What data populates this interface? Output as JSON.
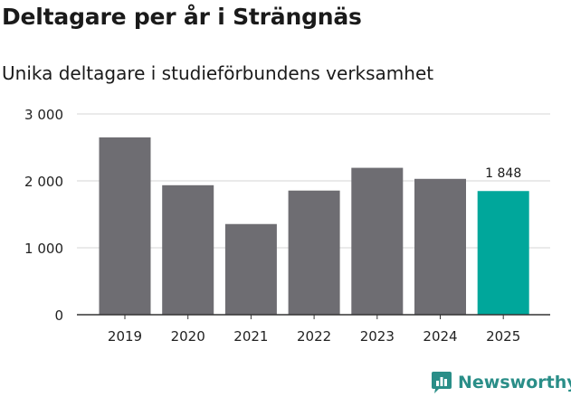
{
  "title": "Deltagare per år i Strängnäs",
  "subtitle": "Unika deltagare i studieförbundens verksamhet",
  "brand": {
    "name": "Newsworthy",
    "icon": "newsworthy-logo-icon",
    "color": "#2a8e88"
  },
  "colors": {
    "bar": "#6e6d72",
    "highlight": "#00a79b",
    "grid": "#dddddd",
    "axis": "#333333"
  },
  "chart_data": {
    "type": "bar",
    "title": "Deltagare per år i Strängnäs",
    "subtitle": "Unika deltagare i studieförbundens verksamhet",
    "xlabel": "",
    "ylabel": "",
    "categories": [
      "2019",
      "2020",
      "2021",
      "2022",
      "2023",
      "2024",
      "2025"
    ],
    "values": [
      2650,
      1935,
      1355,
      1855,
      2195,
      2030,
      1848
    ],
    "highlight_index": 6,
    "data_labels": [
      {
        "index": 6,
        "text": "1 848"
      }
    ],
    "yticks": [
      0,
      1000,
      2000,
      3000
    ],
    "ytick_labels": [
      "0",
      "1 000",
      "2 000",
      "3 000"
    ],
    "ylim": [
      0,
      3000
    ],
    "grid": true,
    "legend": "none"
  }
}
